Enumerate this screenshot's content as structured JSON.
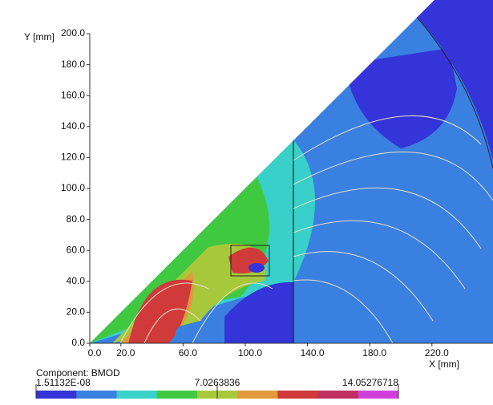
{
  "chart_data": {
    "type": "contour",
    "xlabel": "X [mm]",
    "ylabel": "Y [mm]",
    "xlim": [
      0,
      259
    ],
    "ylim": [
      0,
      200
    ],
    "xticks": [
      {
        "value": 0,
        "label": "0.0"
      },
      {
        "value": 20,
        "label": "20.0"
      },
      {
        "value": 60,
        "label": "60.0"
      },
      {
        "value": 100,
        "label": "100.0"
      },
      {
        "value": 140,
        "label": "140.0"
      },
      {
        "value": 180,
        "label": "180.0"
      },
      {
        "value": 220,
        "label": "220.0"
      }
    ],
    "yticks": [
      {
        "value": 0,
        "label": "0.0"
      },
      {
        "value": 20,
        "label": "20.0"
      },
      {
        "value": 40,
        "label": "40.0"
      },
      {
        "value": 60,
        "label": "60.0"
      },
      {
        "value": 80,
        "label": "80.0"
      },
      {
        "value": 100,
        "label": "100.0"
      },
      {
        "value": 120,
        "label": "120.0"
      },
      {
        "value": 140,
        "label": "140.0"
      },
      {
        "value": 160,
        "label": "160.0"
      },
      {
        "value": 180,
        "label": "180.0"
      },
      {
        "value": 200,
        "label": "200.0"
      }
    ],
    "colorbar": {
      "title": "Component: BMOD",
      "range": [
        1.51132e-08,
        14.05276718
      ],
      "ticks": [
        {
          "value": 1.51132e-08,
          "label": "1.51132E-08"
        },
        {
          "value": 7.0263836,
          "label": "7.0263836"
        },
        {
          "value": 14.05276718,
          "label": "14.05276718"
        }
      ],
      "colors": [
        "#3434d8",
        "#3a80e0",
        "#38d0c8",
        "#40c840",
        "#a8c83c",
        "#e09a3c",
        "#d03a3a",
        "#c03060",
        "#d040d8"
      ]
    }
  }
}
